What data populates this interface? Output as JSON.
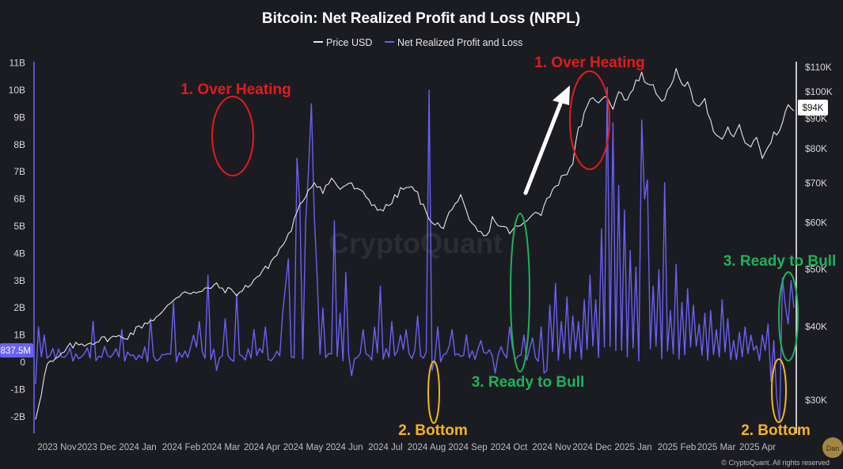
{
  "chart_data": {
    "type": "line",
    "title": "Bitcoin: Net Realized Profit and Loss (NRPL)",
    "legend": {
      "placement": "top-center"
    },
    "series": [
      {
        "name": "Price USD",
        "color": "#e8e8e8",
        "axis": "right",
        "values": [
          [
            0,
            28000
          ],
          [
            2,
            31000
          ],
          [
            4,
            34500
          ],
          [
            7,
            35000
          ],
          [
            12,
            37000
          ],
          [
            18,
            37500
          ],
          [
            25,
            38200
          ],
          [
            32,
            38500
          ],
          [
            38,
            40500
          ],
          [
            44,
            42000
          ],
          [
            48,
            44500
          ],
          [
            52,
            46000
          ],
          [
            57,
            45500
          ],
          [
            62,
            47000
          ],
          [
            66,
            46200
          ],
          [
            71,
            45500
          ],
          [
            75,
            47500
          ],
          [
            80,
            50000
          ],
          [
            84,
            53000
          ],
          [
            88,
            57000
          ],
          [
            91,
            62000
          ],
          [
            94,
            67000
          ],
          [
            97,
            70500
          ],
          [
            100,
            68000
          ],
          [
            103,
            71000
          ],
          [
            106,
            68500
          ],
          [
            109,
            70000
          ],
          [
            112,
            68000
          ],
          [
            115,
            66500
          ],
          [
            118,
            64000
          ],
          [
            121,
            63000
          ],
          [
            124,
            65000
          ],
          [
            127,
            68000
          ],
          [
            130,
            69000
          ],
          [
            133,
            67000
          ],
          [
            136,
            62000
          ],
          [
            139,
            60000
          ],
          [
            142,
            58500
          ],
          [
            145,
            64000
          ],
          [
            148,
            66000
          ],
          [
            151,
            60000
          ],
          [
            154,
            58000
          ],
          [
            157,
            56500
          ],
          [
            159,
            61000
          ],
          [
            162,
            59000
          ],
          [
            165,
            58000
          ],
          [
            168,
            59000
          ],
          [
            171,
            60000
          ],
          [
            174,
            63000
          ],
          [
            176,
            62500
          ],
          [
            179,
            67000
          ],
          [
            181,
            69500
          ],
          [
            184,
            72000
          ],
          [
            187,
            76000
          ],
          [
            189,
            86000
          ],
          [
            191,
            91000
          ],
          [
            193,
            96000
          ],
          [
            195,
            97500
          ],
          [
            197,
            96000
          ],
          [
            199,
            98500
          ],
          [
            201,
            94000
          ],
          [
            203,
            101000
          ],
          [
            205,
            97000
          ],
          [
            207,
            99000
          ],
          [
            209,
            103500
          ],
          [
            211,
            107500
          ],
          [
            213,
            102000
          ],
          [
            215,
            103500
          ],
          [
            217,
            97000
          ],
          [
            219,
            98000
          ],
          [
            221,
            101000
          ],
          [
            223,
            108000
          ],
          [
            225,
            104000
          ],
          [
            227,
            102500
          ],
          [
            229,
            96500
          ],
          [
            231,
            95500
          ],
          [
            233,
            97500
          ],
          [
            235,
            88500
          ],
          [
            237,
            84000
          ],
          [
            239,
            82000
          ],
          [
            241,
            86500
          ],
          [
            243,
            84000
          ],
          [
            245,
            87000
          ],
          [
            247,
            82500
          ],
          [
            249,
            80000
          ],
          [
            251,
            83500
          ],
          [
            253,
            77500
          ],
          [
            255,
            81000
          ],
          [
            257,
            84500
          ],
          [
            259,
            85000
          ],
          [
            261,
            93000
          ],
          [
            263,
            94500
          ],
          [
            264,
            94000
          ]
        ]
      },
      {
        "name": "Net Realized Profit and Loss",
        "color": "#6a60f2",
        "axis": "left"
      }
    ],
    "x_tick_labels": [
      "2023 Nov",
      "2023 Dec",
      "2024 Jan",
      "2024 Feb",
      "2024 Mar",
      "2024 Apr",
      "2024 May",
      "2024 Jun",
      "2024 Jul",
      "2024 Aug",
      "2024 Sep",
      "2024 Oct",
      "2024 Nov",
      "2024 Dec",
      "2025 Jan",
      "2025 Feb",
      "2025 Mar",
      "2025 Apr"
    ],
    "y_left_tick_labels": [
      "11B",
      "10B",
      "9B",
      "8B",
      "7B",
      "6B",
      "5B",
      "4B",
      "3B",
      "2B",
      "1B",
      "0",
      "-1B",
      "-2B"
    ],
    "y_left_range": [
      -2200000000,
      11300000000
    ],
    "y_right_tick_labels": [
      "$110K",
      "$100K",
      "$90K",
      "$80K",
      "$70K",
      "$60K",
      "$50K",
      "$40K",
      "$30K"
    ],
    "y_right_scale": "log",
    "y_right_range": [
      27500,
      112500
    ],
    "nrpl_spikes": [
      [
        20,
        1.5
      ],
      [
        30,
        1.2
      ],
      [
        40,
        1.6
      ],
      [
        48,
        2.2
      ],
      [
        55,
        1.0
      ],
      [
        57,
        1.5
      ],
      [
        60,
        3.2
      ],
      [
        66,
        1.6
      ],
      [
        70,
        2.5
      ],
      [
        76,
        1.2
      ],
      [
        80,
        1.3
      ],
      [
        86,
        1.8
      ],
      [
        87,
        2.8
      ],
      [
        88,
        3.8
      ],
      [
        91,
        7.5
      ],
      [
        92,
        5.8
      ],
      [
        94,
        5.1
      ],
      [
        95,
        7.0
      ],
      [
        96,
        9.5
      ],
      [
        97,
        5.4
      ],
      [
        98,
        3.2
      ],
      [
        100,
        2.0
      ],
      [
        104,
        5.2
      ],
      [
        106,
        1.8
      ],
      [
        108,
        3.3
      ],
      [
        110,
        1.6
      ],
      [
        114,
        1.2
      ],
      [
        118,
        1.3
      ],
      [
        120,
        2.8
      ],
      [
        124,
        1.5
      ],
      [
        127,
        1.0
      ],
      [
        129,
        1.2
      ],
      [
        133,
        1.7
      ],
      [
        137,
        10.0
      ],
      [
        140,
        1.3
      ],
      [
        145,
        1.2
      ],
      [
        150,
        1.0
      ],
      [
        155,
        0.8
      ],
      [
        160,
        1.2
      ],
      [
        165,
        1.3
      ],
      [
        170,
        1.0
      ],
      [
        173,
        0.9
      ],
      [
        176,
        1.3
      ],
      [
        179,
        2.1
      ],
      [
        181,
        2.9
      ],
      [
        183,
        1.5
      ],
      [
        185,
        2.4
      ],
      [
        187,
        1.7
      ],
      [
        189,
        1.5
      ],
      [
        191,
        2.3
      ],
      [
        193,
        3.2
      ],
      [
        195,
        2.3
      ],
      [
        197,
        4.9
      ],
      [
        199,
        10.1
      ],
      [
        201,
        8.8
      ],
      [
        203,
        6.5
      ],
      [
        205,
        5.6
      ],
      [
        207,
        4.1
      ],
      [
        209,
        3.5
      ],
      [
        211,
        8.9
      ],
      [
        212,
        6.0
      ],
      [
        213,
        6.7
      ],
      [
        215,
        2.8
      ],
      [
        217,
        3.4
      ],
      [
        219,
        6.6
      ],
      [
        221,
        1.9
      ],
      [
        223,
        3.6
      ],
      [
        225,
        2.2
      ],
      [
        227,
        2.7
      ],
      [
        229,
        2.1
      ],
      [
        231,
        1.4
      ],
      [
        233,
        1.8
      ],
      [
        235,
        1.9
      ],
      [
        237,
        1.2
      ],
      [
        239,
        2.3
      ],
      [
        241,
        1.6
      ],
      [
        243,
        0.8
      ],
      [
        245,
        1.1
      ],
      [
        247,
        1.3
      ],
      [
        249,
        1.0
      ],
      [
        251,
        0.6
      ],
      [
        253,
        1.0
      ],
      [
        255,
        1.4
      ],
      [
        257,
        0.8
      ],
      [
        259,
        1.0
      ],
      [
        260,
        3.1
      ],
      [
        261,
        2.1
      ],
      [
        262,
        1.4
      ],
      [
        263,
        3.0
      ],
      [
        264,
        2.0
      ]
    ],
    "nrpl_dips": [
      [
        63,
        -0.3
      ],
      [
        110,
        -0.5
      ],
      [
        138,
        -0.3
      ],
      [
        160,
        -0.4
      ],
      [
        177,
        -0.4
      ],
      [
        178,
        -0.3
      ],
      [
        256,
        -0.7
      ],
      [
        258,
        -1.3
      ],
      [
        259,
        -2.2
      ]
    ],
    "current_values": {
      "price_label": "$94K",
      "nrpl_label": "837.5M"
    },
    "annotations": [
      {
        "text": "1. Over Heating",
        "color": "#e31b1b"
      },
      {
        "text": "1. Over Heating",
        "color": "#e31b1b"
      },
      {
        "text": "2. Bottom",
        "color": "#f3b523"
      },
      {
        "text": "2. Bottom",
        "color": "#f3b523"
      },
      {
        "text": "3. Ready to Bull",
        "color": "#1fb25a"
      },
      {
        "text": "3. Ready to Bull",
        "color": "#1fb25a"
      }
    ],
    "watermark": "CryptoQuant",
    "copyright": "© CryptoQuant. All rights reserved",
    "corner_mark": "Dan"
  },
  "colors": {
    "background": "#1b1c22",
    "price": "#e8e8e8",
    "nrpl": "#6a60f2",
    "heating": "#e31b1b",
    "bottom": "#f3b523",
    "bull": "#1fb25a",
    "arrow": "#ffffff"
  }
}
